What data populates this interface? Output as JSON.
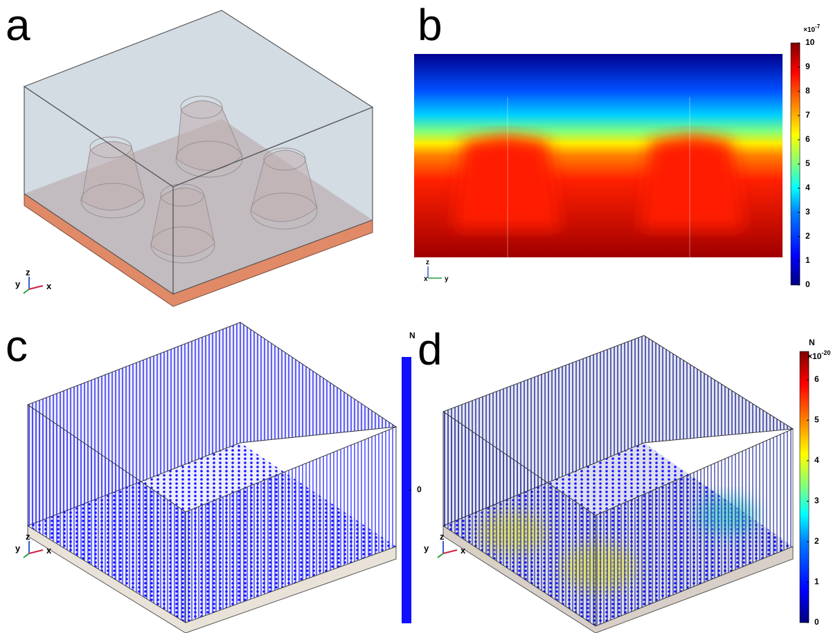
{
  "panels": [
    {
      "label": "a",
      "axes": [
        "y",
        "z",
        "x"
      ]
    },
    {
      "label": "b",
      "axes": [
        "z",
        "x",
        "y"
      ],
      "colorbar": {
        "exponent": {
          "base": "×10",
          "power": "-7"
        },
        "lim": [
          0,
          10
        ],
        "ticks": [
          0,
          1,
          2,
          3,
          4,
          5,
          6,
          7,
          8,
          9,
          10
        ]
      }
    },
    {
      "label": "c",
      "axes": [
        "y",
        "z",
        "x"
      ],
      "colorbar": {
        "unit": "N",
        "ticks": [
          0
        ]
      }
    },
    {
      "label": "d",
      "axes": [
        "y",
        "z",
        "x"
      ],
      "colorbar": {
        "unit": "N",
        "exponent": {
          "base": "×10",
          "power": "-20"
        },
        "lim": [
          0,
          6.7
        ],
        "ticks": [
          0,
          1,
          2,
          3,
          4,
          5,
          6
        ]
      }
    }
  ]
}
